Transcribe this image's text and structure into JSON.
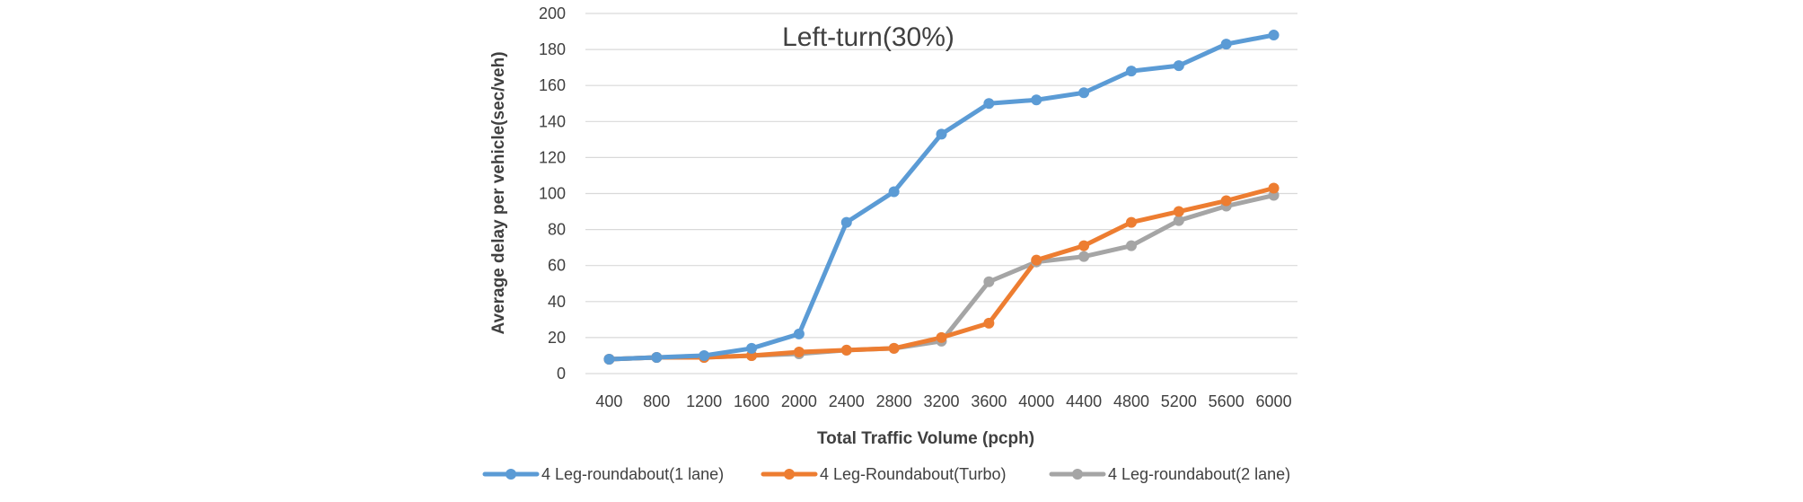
{
  "chart_data": {
    "type": "line",
    "title": "Left-turn(30%)",
    "xlabel": "Total Traffic Volume (pcph)",
    "ylabel": "Average delay per vehicle(sec/veh)",
    "ylim": [
      0,
      200
    ],
    "yticks": [
      "0",
      "20",
      "40",
      "60",
      "80",
      "100",
      "120",
      "140",
      "160",
      "180",
      "200"
    ],
    "grid": true,
    "legend_position": "bottom",
    "categories": [
      "400",
      "800",
      "1200",
      "1600",
      "2000",
      "2400",
      "2800",
      "3200",
      "3600",
      "4000",
      "4400",
      "4800",
      "5200",
      "5600",
      "6000"
    ],
    "series": [
      {
        "name": "4 Leg-roundabout(1 lane)",
        "color": "#5B9BD5",
        "values": [
          8,
          9,
          10,
          14,
          22,
          84,
          101,
          133,
          150,
          152,
          156,
          168,
          171,
          183,
          188
        ]
      },
      {
        "name": "4 Leg-Roundabout(Turbo)",
        "color": "#ED7D31",
        "values": [
          8,
          9,
          9,
          10,
          12,
          13,
          14,
          20,
          28,
          63,
          71,
          84,
          90,
          96,
          103
        ]
      },
      {
        "name": "4 Leg-roundabout(2 lane)",
        "color": "#A5A5A5",
        "values": [
          8,
          9,
          9,
          10,
          11,
          13,
          14,
          18,
          51,
          62,
          65,
          71,
          85,
          93,
          99
        ]
      }
    ]
  }
}
